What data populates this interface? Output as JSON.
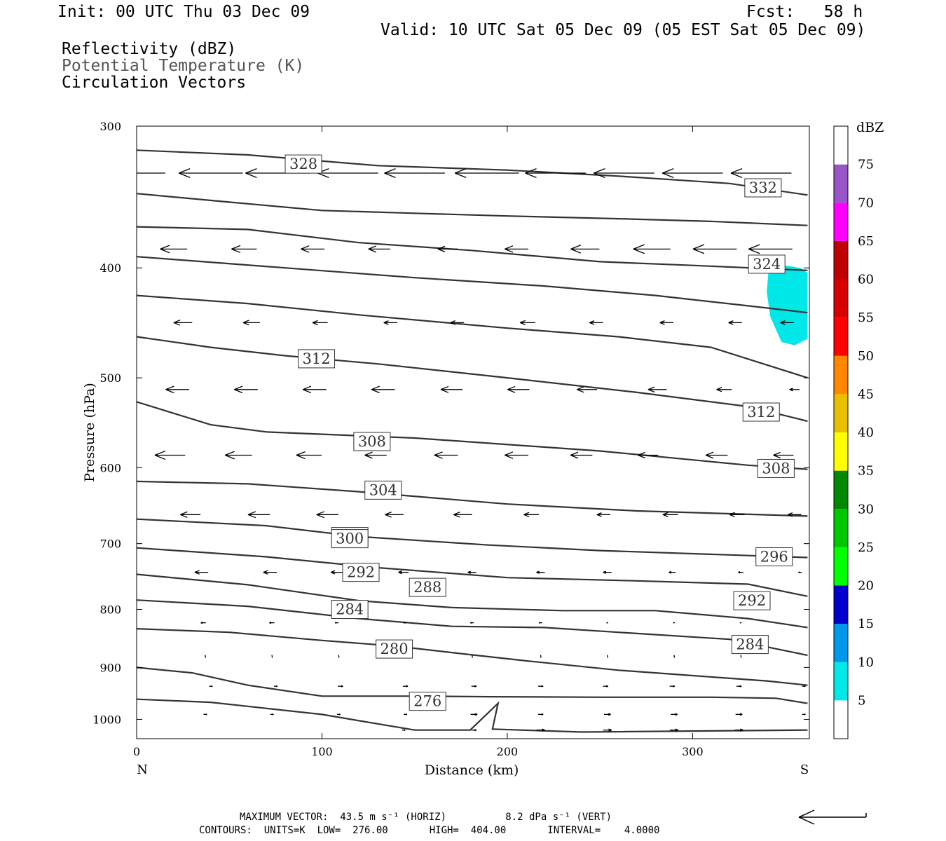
{
  "header": {
    "init": "Init: 00 UTC Thu 03 Dec 09",
    "fcst": "Fcst:   58 h",
    "valid": "Valid: 10 UTC Sat 05 Dec 09 (05 EST Sat 05 Dec 09)",
    "field1": "Reflectivity (dBZ)",
    "field2": "Potential Temperature (K)",
    "field3": "Circulation Vectors"
  },
  "footer": {
    "line1": "MAXIMUM VECTOR:  43.5 m s⁻¹ (HORIZ)          8.2 dPa s⁻¹ (VERT)",
    "line2": "CONTOURS:  UNITS=K  LOW=  276.00       HIGH=  404.00       INTERVAL=    4.0000"
  },
  "colors": {
    "contour": "#333333",
    "vector": "#000000",
    "echo": "#00e8e8"
  },
  "chart_data": {
    "type": "cross-section",
    "xlabel": "Distance (km)",
    "ylabel": "Pressure (hPa)",
    "x_ticks": [
      0,
      100,
      200,
      300
    ],
    "y_ticks": [
      300,
      400,
      500,
      600,
      700,
      800,
      900,
      1000
    ],
    "xlim": [
      0,
      363
    ],
    "ylim": [
      1040,
      300
    ],
    "y_scale": "log",
    "end_left": "N",
    "end_right": "S",
    "colorbar": {
      "title": "dBZ",
      "levels": [
        5,
        10,
        15,
        20,
        25,
        30,
        35,
        40,
        45,
        50,
        55,
        60,
        65,
        70,
        75
      ],
      "colors": [
        "#00e8e8",
        "#0098e8",
        "#0000cc",
        "#00ff00",
        "#00c800",
        "#008800",
        "#ffff00",
        "#e8c000",
        "#ff8800",
        "#ff0000",
        "#d80000",
        "#c00000",
        "#ff00ff",
        "#9955c8",
        "#ffffff"
      ]
    },
    "isentropes": [
      {
        "theta": 276,
        "points": [
          [
            0,
            960
          ],
          [
            40,
            966
          ],
          [
            100,
            990
          ],
          [
            150,
            1022
          ],
          [
            180,
            1022
          ],
          [
            195,
            968
          ],
          [
            192,
            1020
          ],
          [
            240,
            1026
          ],
          [
            362,
            1022
          ]
        ],
        "labels": [
          [
            157,
            964
          ]
        ]
      },
      {
        "theta": 280,
        "points": [
          [
            0,
            900
          ],
          [
            30,
            910
          ],
          [
            60,
            933
          ],
          [
            100,
            954
          ],
          [
            150,
            954
          ],
          [
            190,
            955
          ],
          [
            250,
            956
          ],
          [
            310,
            956
          ],
          [
            345,
            958
          ],
          [
            362,
            968
          ]
        ],
        "labels": [
          [
            139,
            867
          ]
        ]
      },
      {
        "theta": 284,
        "points": [
          [
            0,
            832
          ],
          [
            50,
            838
          ],
          [
            100,
            852
          ],
          [
            140,
            862
          ],
          [
            175,
            875
          ],
          [
            210,
            888
          ],
          [
            260,
            905
          ],
          [
            300,
            915
          ],
          [
            340,
            925
          ],
          [
            362,
            933
          ]
        ],
        "labels": [
          [
            115,
            800
          ],
          [
            331,
            859
          ]
        ]
      },
      {
        "theta": 288,
        "points": [
          [
            0,
            785
          ],
          [
            60,
            795
          ],
          [
            120,
            815
          ],
          [
            170,
            828
          ],
          [
            220,
            830
          ],
          [
            270,
            840
          ],
          [
            320,
            850
          ],
          [
            362,
            878
          ]
        ],
        "labels": [
          [
            157,
            765
          ]
        ]
      },
      {
        "theta": 292,
        "points": [
          [
            0,
            745
          ],
          [
            60,
            761
          ],
          [
            120,
            786
          ],
          [
            170,
            797
          ],
          [
            230,
            802
          ],
          [
            280,
            802
          ],
          [
            330,
            815
          ],
          [
            362,
            830
          ]
        ],
        "labels": [
          [
            121,
            742
          ],
          [
            332,
            786
          ]
        ]
      },
      {
        "theta": 296,
        "points": [
          [
            0,
            706
          ],
          [
            70,
            719
          ],
          [
            130,
            735
          ],
          [
            200,
            750
          ],
          [
            270,
            755
          ],
          [
            330,
            760
          ],
          [
            362,
            779
          ]
        ],
        "labels": [
          [
            115,
            690
          ],
          [
            344,
            719
          ]
        ]
      },
      {
        "theta": 300,
        "points": [
          [
            0,
            666
          ],
          [
            70,
            675
          ],
          [
            120,
            690
          ],
          [
            190,
            702
          ],
          [
            250,
            710
          ],
          [
            362,
            720
          ]
        ],
        "labels": [
          [
            115,
            693
          ]
        ]
      },
      {
        "theta": 304,
        "points": [
          [
            0,
            617
          ],
          [
            60,
            620
          ],
          [
            120,
            630
          ],
          [
            200,
            646
          ],
          [
            270,
            655
          ],
          [
            362,
            662
          ]
        ],
        "labels": [
          [
            133,
            628
          ]
        ]
      },
      {
        "theta": 308,
        "points": [
          [
            0,
            525
          ],
          [
            40,
            550
          ],
          [
            70,
            558
          ],
          [
            150,
            565
          ],
          [
            250,
            580
          ],
          [
            330,
            597
          ],
          [
            362,
            602
          ]
        ],
        "labels": [
          [
            127,
            569
          ],
          [
            345,
            601
          ]
        ]
      },
      {
        "theta": 312,
        "points": [
          [
            0,
            460
          ],
          [
            40,
            470
          ],
          [
            80,
            478
          ],
          [
            130,
            486
          ],
          [
            200,
            500
          ],
          [
            270,
            515
          ],
          [
            330,
            530
          ],
          [
            362,
            546
          ]
        ],
        "labels": [
          [
            97,
            481
          ],
          [
            337,
            536
          ]
        ]
      },
      {
        "theta": 316,
        "points": [
          [
            0,
            423
          ],
          [
            60,
            430
          ],
          [
            120,
            440
          ],
          [
            200,
            452
          ],
          [
            260,
            460
          ],
          [
            310,
            470
          ],
          [
            362,
            500
          ]
        ],
        "labels": []
      },
      {
        "theta": 320,
        "points": [
          [
            0,
            391
          ],
          [
            80,
            400
          ],
          [
            150,
            408
          ],
          [
            220,
            415
          ],
          [
            280,
            423
          ],
          [
            330,
            432
          ],
          [
            362,
            438
          ]
        ],
        "labels": []
      },
      {
        "theta": 324,
        "points": [
          [
            0,
            368
          ],
          [
            60,
            370
          ],
          [
            120,
            380
          ],
          [
            180,
            386
          ],
          [
            250,
            395
          ],
          [
            300,
            398
          ],
          [
            362,
            402
          ]
        ],
        "labels": [
          [
            340,
            397
          ]
        ]
      },
      {
        "theta": 328,
        "points": [
          [
            0,
            344
          ],
          [
            50,
            350
          ],
          [
            100,
            356
          ],
          [
            150,
            358
          ],
          [
            200,
            360
          ],
          [
            260,
            362
          ],
          [
            310,
            364
          ],
          [
            362,
            367
          ]
        ],
        "labels": [
          [
            90,
            324
          ]
        ]
      },
      {
        "theta": 332,
        "points": [
          [
            0,
            315
          ],
          [
            60,
            318
          ],
          [
            130,
            325
          ],
          [
            200,
            328
          ],
          [
            260,
            332
          ],
          [
            320,
            337
          ],
          [
            362,
            345
          ]
        ],
        "labels": [
          [
            338,
            340
          ]
        ]
      }
    ],
    "reflectivity_5dbz": [
      [
        341,
        402
      ],
      [
        350,
        398
      ],
      [
        358,
        400
      ],
      [
        362,
        404
      ],
      [
        362,
        462
      ],
      [
        355,
        468
      ],
      [
        348,
        465
      ],
      [
        342,
        442
      ],
      [
        340,
        420
      ]
    ],
    "vectors": [
      {
        "p": 330,
        "rows": [
          [
            0,
            -34
          ],
          [
            40,
            -38
          ],
          [
            76,
            -38
          ],
          [
            114,
            -36
          ],
          [
            150,
            -36
          ],
          [
            189,
            -38
          ],
          [
            226,
            -36
          ],
          [
            263,
            -36
          ],
          [
            300,
            -36
          ],
          [
            337,
            -36
          ]
        ]
      },
      {
        "p": 385,
        "rows": [
          [
            20,
            -16
          ],
          [
            58,
            -15
          ],
          [
            95,
            -14
          ],
          [
            131,
            -13
          ],
          [
            168,
            -12
          ],
          [
            205,
            -14
          ],
          [
            242,
            -17
          ],
          [
            278,
            -22
          ],
          [
            312,
            -26
          ],
          [
            342,
            -26
          ]
        ]
      },
      {
        "p": 447,
        "rows": [
          [
            25,
            -11
          ],
          [
            62,
            -10
          ],
          [
            99,
            -9
          ],
          [
            137,
            -8
          ],
          [
            173,
            -8
          ],
          [
            211,
            -9
          ],
          [
            248,
            -8
          ],
          [
            286,
            -8
          ],
          [
            323,
            -8
          ],
          [
            351,
            -8
          ]
        ]
      },
      {
        "p": 512,
        "rows": [
          [
            22,
            -14
          ],
          [
            59,
            -14
          ],
          [
            96,
            -14
          ],
          [
            133,
            -14
          ],
          [
            170,
            -13
          ],
          [
            206,
            -13
          ],
          [
            243,
            -12
          ],
          [
            281,
            -11
          ],
          [
            317,
            -9
          ],
          [
            355,
            -6
          ]
        ]
      },
      {
        "p": 585,
        "rows": [
          [
            18,
            -18
          ],
          [
            55,
            -16
          ],
          [
            93,
            -15
          ],
          [
            129,
            -13
          ],
          [
            167,
            -14
          ],
          [
            205,
            -14
          ],
          [
            240,
            -13
          ],
          [
            276,
            -12
          ],
          [
            313,
            -13
          ],
          [
            349,
            -12
          ]
        ]
      },
      {
        "p": 660,
        "rows": [
          [
            29,
            -12
          ],
          [
            66,
            -13
          ],
          [
            103,
            -13
          ],
          [
            139,
            -11
          ],
          [
            176,
            -11
          ],
          [
            213,
            -9
          ],
          [
            252,
            -8
          ],
          [
            288,
            -9
          ],
          [
            324,
            -9
          ],
          [
            355,
            -8
          ]
        ]
      },
      {
        "p": 742,
        "rows": [
          [
            35,
            -8
          ],
          [
            72,
            -8
          ],
          [
            108,
            -7
          ],
          [
            144,
            -6
          ],
          [
            181,
            -5
          ],
          [
            218,
            -5
          ],
          [
            254,
            -5
          ],
          [
            289,
            -4
          ],
          [
            326,
            -3
          ],
          [
            358,
            -2
          ]
        ]
      },
      {
        "p": 822,
        "rows": [
          [
            36,
            -3
          ],
          [
            73,
            -3
          ],
          [
            108,
            -2
          ],
          [
            145,
            -2
          ],
          [
            181,
            -2
          ],
          [
            218,
            -2
          ],
          [
            254,
            -1
          ],
          [
            290,
            -1
          ],
          [
            326,
            -1
          ]
        ]
      },
      {
        "p": 880,
        "rows": [
          [
            37,
            0
          ],
          [
            73,
            0
          ],
          [
            109,
            0
          ],
          [
            145,
            0
          ],
          [
            181,
            0
          ],
          [
            218,
            0
          ],
          [
            254,
            0
          ],
          [
            290,
            0
          ],
          [
            326,
            0
          ]
        ]
      },
      {
        "p": 935,
        "rows": [
          [
            40,
            2
          ],
          [
            75,
            2
          ],
          [
            110,
            3
          ],
          [
            145,
            3
          ],
          [
            182,
            3
          ],
          [
            218,
            3
          ],
          [
            253,
            3
          ],
          [
            289,
            3
          ],
          [
            325,
            3
          ],
          [
            360,
            2
          ]
        ]
      },
      {
        "p": 990,
        "rows": [
          [
            37,
            2
          ],
          [
            73,
            2
          ],
          [
            109,
            2
          ],
          [
            145,
            2
          ],
          [
            182,
            4
          ],
          [
            218,
            3
          ],
          [
            254,
            4
          ],
          [
            290,
            4
          ],
          [
            325,
            4
          ],
          [
            360,
            2
          ]
        ]
      },
      {
        "p": 1022,
        "rows": [
          [
            144,
            2
          ],
          [
            182,
            3
          ],
          [
            218,
            5
          ],
          [
            254,
            5
          ],
          [
            290,
            5
          ],
          [
            325,
            5
          ]
        ]
      }
    ]
  }
}
